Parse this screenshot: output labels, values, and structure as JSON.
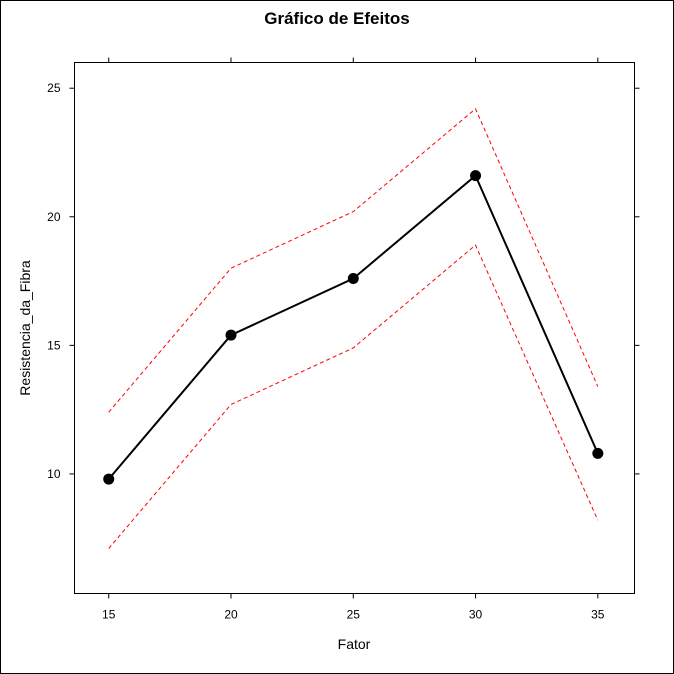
{
  "chart_data": {
    "type": "line",
    "title": "Gráfico de Efeitos",
    "xlabel": "Fator",
    "ylabel": "Resistencia_da_Fibra",
    "x": [
      15,
      20,
      25,
      30,
      35
    ],
    "xticks": [
      "15",
      "20",
      "25",
      "30",
      "35"
    ],
    "yticks": [
      "10",
      "15",
      "20",
      "25"
    ],
    "xlim": [
      13.6,
      36.5
    ],
    "ylim": [
      5.35,
      26.0
    ],
    "grid": false,
    "series": [
      {
        "values": [
          9.8,
          15.4,
          17.6,
          21.6,
          10.8
        ],
        "color": "#000000",
        "style": "solid-with-markers"
      },
      {
        "values": [
          12.4,
          18.0,
          20.2,
          24.2,
          13.4
        ],
        "color": "#ff0000",
        "style": "dashed"
      },
      {
        "values": [
          7.1,
          12.7,
          14.9,
          18.9,
          8.2
        ],
        "color": "#ff0000",
        "style": "dashed"
      }
    ]
  }
}
